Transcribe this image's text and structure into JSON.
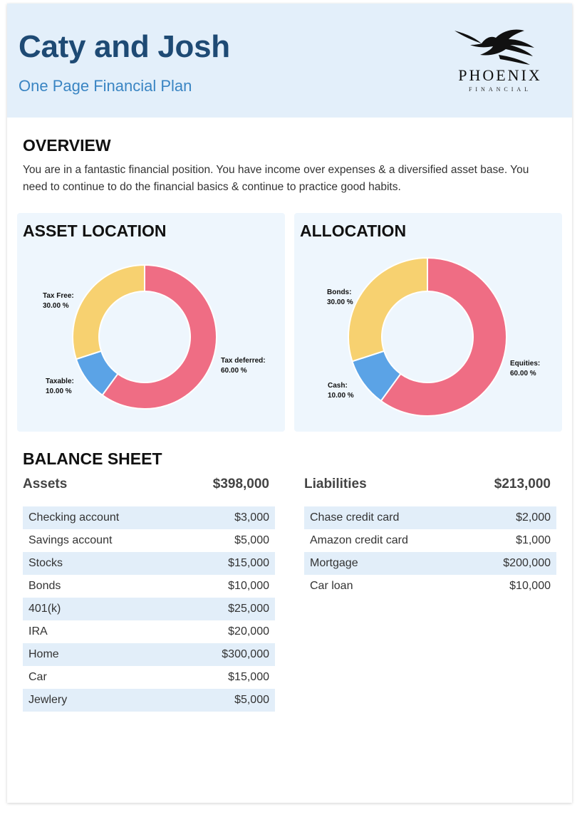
{
  "header": {
    "title": "Caty and Josh",
    "subtitle": "One Page Financial Plan",
    "logo_icon": "phoenix-bird-icon",
    "logo_word": "PHOENIX",
    "logo_sub": "FINANCIAL"
  },
  "overview": {
    "heading": "OVERVIEW",
    "text": "You are in a fantastic financial position. You have income over expenses & a diversified asset base. You need to continue to do the financial basics & continue to practice good habits."
  },
  "colors": {
    "red": "#ef6d84",
    "blue": "#5ba3e6",
    "yellow": "#f7d170"
  },
  "chart_data": [
    {
      "type": "pie",
      "style": "donut",
      "title": "ASSET LOCATION",
      "slices": [
        {
          "name": "Tax deferred",
          "value": 60,
          "label": "Tax deferred:",
          "value_label": "60.00 %",
          "color": "#ef6d84"
        },
        {
          "name": "Taxable",
          "value": 10,
          "label": "Taxable:",
          "value_label": "10.00 %",
          "color": "#5ba3e6"
        },
        {
          "name": "Tax Free",
          "value": 30,
          "label": "Tax Free:",
          "value_label": "30.00 %",
          "color": "#f7d170"
        }
      ]
    },
    {
      "type": "pie",
      "style": "donut",
      "title": "ALLOCATION",
      "slices": [
        {
          "name": "Equities",
          "value": 60,
          "label": "Equities:",
          "value_label": "60.00 %",
          "color": "#ef6d84"
        },
        {
          "name": "Cash",
          "value": 10,
          "label": "Cash:",
          "value_label": "10.00 %",
          "color": "#5ba3e6"
        },
        {
          "name": "Bonds",
          "value": 30,
          "label": "Bonds:",
          "value_label": "30.00 %",
          "color": "#f7d170"
        }
      ]
    }
  ],
  "balance_sheet": {
    "heading": "BALANCE SHEET",
    "assets": {
      "label": "Assets",
      "total": "$398,000",
      "rows": [
        {
          "name": "Checking account",
          "value": "$3,000"
        },
        {
          "name": "Savings account",
          "value": "$5,000"
        },
        {
          "name": "Stocks",
          "value": "$15,000"
        },
        {
          "name": "Bonds",
          "value": "$10,000"
        },
        {
          "name": "401(k)",
          "value": "$25,000"
        },
        {
          "name": "IRA",
          "value": "$20,000"
        },
        {
          "name": "Home",
          "value": "$300,000"
        },
        {
          "name": "Car",
          "value": "$15,000"
        },
        {
          "name": "Jewlery",
          "value": "$5,000"
        }
      ]
    },
    "liabilities": {
      "label": "Liabilities",
      "total": "$213,000",
      "rows": [
        {
          "name": "Chase credit card",
          "value": "$2,000"
        },
        {
          "name": "Amazon credit card",
          "value": "$1,000"
        },
        {
          "name": "Mortgage",
          "value": "$200,000"
        },
        {
          "name": "Car loan",
          "value": "$10,000"
        }
      ]
    }
  }
}
